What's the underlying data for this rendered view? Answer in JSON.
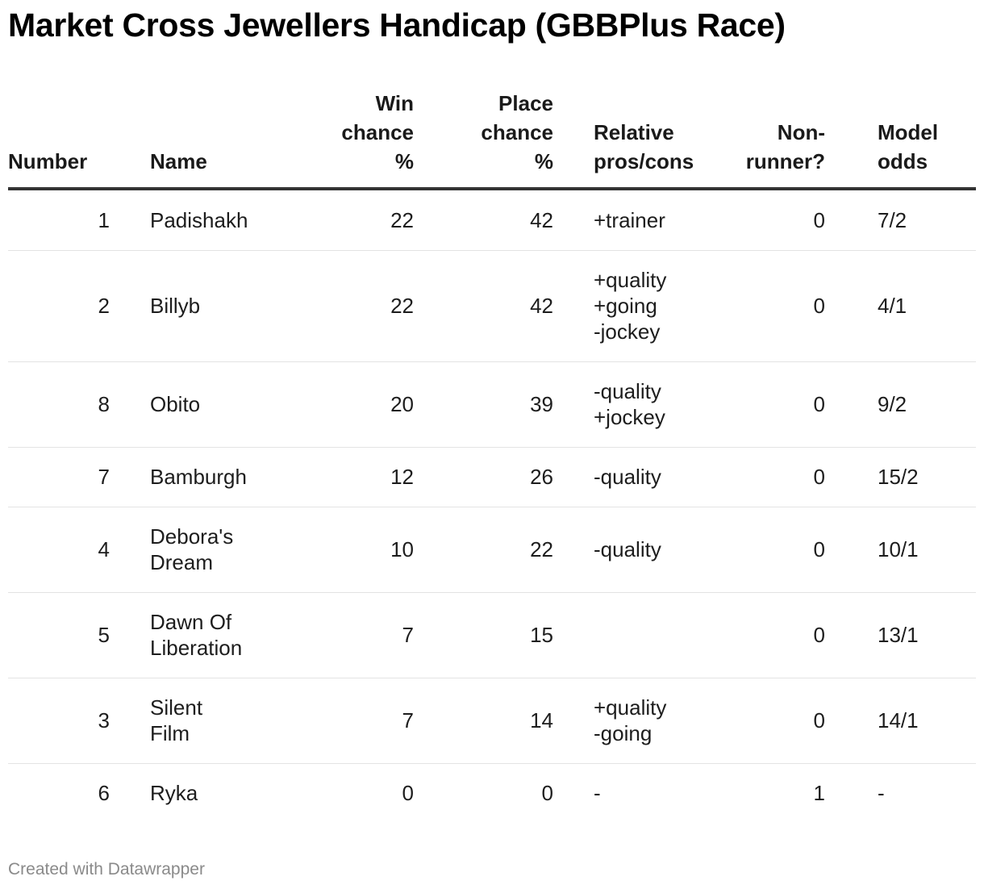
{
  "title": "Market Cross Jewellers Handicap (GBBPlus Race)",
  "columns": [
    {
      "key": "number",
      "lines": [
        "Number"
      ]
    },
    {
      "key": "name",
      "lines": [
        "Name"
      ]
    },
    {
      "key": "win",
      "lines": [
        "Win",
        "chance",
        "%"
      ]
    },
    {
      "key": "place",
      "lines": [
        "Place",
        "chance",
        "%"
      ]
    },
    {
      "key": "rel",
      "lines": [
        "Relative",
        "pros/cons"
      ]
    },
    {
      "key": "nr",
      "lines": [
        "Non-",
        "runner?"
      ]
    },
    {
      "key": "odds",
      "lines": [
        "Model",
        "odds"
      ]
    }
  ],
  "rows": [
    {
      "number": "1",
      "name": [
        "Padishakh"
      ],
      "win": "22",
      "place": "42",
      "rel": [
        "+trainer"
      ],
      "nr": "0",
      "odds": "7/2",
      "height": 76
    },
    {
      "number": "2",
      "name": [
        "Billyb"
      ],
      "win": "22",
      "place": "42",
      "rel": [
        "+quality",
        "+going",
        "-jockey"
      ],
      "nr": "0",
      "odds": "4/1",
      "height": 138
    },
    {
      "number": "8",
      "name": [
        "Obito"
      ],
      "win": "20",
      "place": "39",
      "rel": [
        "-quality",
        "+jockey"
      ],
      "nr": "0",
      "odds": "9/2",
      "height": 106
    },
    {
      "number": "7",
      "name": [
        "Bamburgh"
      ],
      "win": "12",
      "place": "26",
      "rel": [
        "-quality"
      ],
      "nr": "0",
      "odds": "15/2",
      "height": 74
    },
    {
      "number": "4",
      "name": [
        "Debora's",
        "Dream"
      ],
      "win": "10",
      "place": "22",
      "rel": [
        "-quality"
      ],
      "nr": "0",
      "odds": "10/1",
      "height": 106
    },
    {
      "number": "5",
      "name": [
        "Dawn Of",
        "Liberation"
      ],
      "win": "7",
      "place": "15",
      "rel": [],
      "nr": "0",
      "odds": "13/1",
      "height": 106
    },
    {
      "number": "3",
      "name": [
        "Silent",
        "Film"
      ],
      "win": "7",
      "place": "14",
      "rel": [
        "+quality",
        "-going"
      ],
      "nr": "0",
      "odds": "14/1",
      "height": 106
    },
    {
      "number": "6",
      "name": [
        "Ryka"
      ],
      "win": "0",
      "place": "0",
      "rel": [
        "-"
      ],
      "nr": "1",
      "odds": "-",
      "height": 74
    }
  ],
  "footer": "Created with Datawrapper"
}
